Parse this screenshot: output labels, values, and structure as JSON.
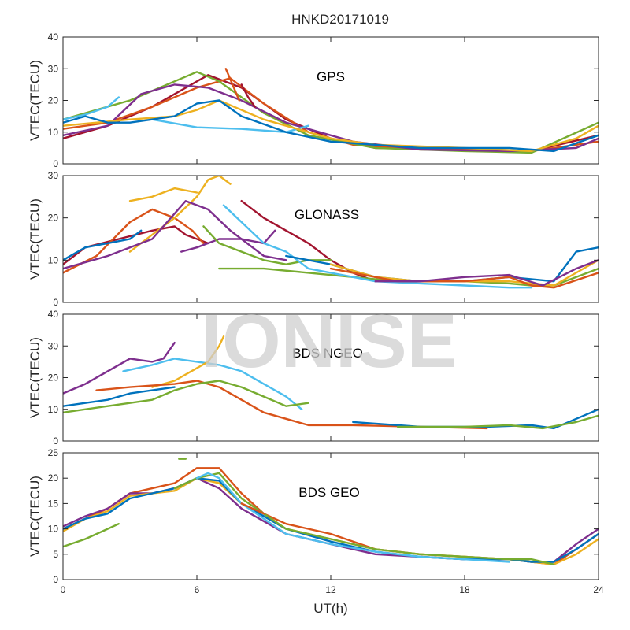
{
  "chart_data": {
    "type": "line",
    "title": "HNKD20171019",
    "xlabel": "UT(h)",
    "xlim": [
      0,
      24
    ],
    "xticks": [
      "0",
      "6",
      "12",
      "18",
      "24"
    ],
    "watermark": "IONISE",
    "panels": [
      {
        "label": "GPS",
        "ylabel": "VTEC(TECU)",
        "ylim": [
          0,
          40
        ],
        "yticks": [
          "0",
          "10",
          "20",
          "30",
          "40"
        ],
        "series": [
          {
            "color": "#a2142f",
            "x": [
              0,
              2,
              4,
              5.5,
              6.5,
              8,
              10,
              12,
              14,
              18,
              21,
              24
            ],
            "y": [
              8,
              12,
              18,
              24,
              28,
              24,
              14,
              8,
              5,
              4.5,
              4,
              9
            ]
          },
          {
            "color": "#d95319",
            "x": [
              0,
              2,
              4,
              6,
              7.5,
              9,
              11,
              13,
              16,
              19,
              21,
              24
            ],
            "y": [
              11,
              13,
              18,
              24,
              27,
              19,
              10,
              6,
              4.5,
              4.5,
              4,
              7
            ]
          },
          {
            "color": "#77ac30",
            "x": [
              0,
              1,
              3,
              5,
              6,
              7,
              9,
              11,
              14,
              18,
              21,
              24
            ],
            "y": [
              14,
              16,
              20,
              26,
              29,
              26,
              16,
              9,
              5,
              4,
              3.5,
              13
            ]
          },
          {
            "color": "#7e2f8e",
            "x": [
              0,
              2,
              3.5,
              5,
              6.5,
              8,
              10,
              13,
              16,
              20,
              23,
              24
            ],
            "y": [
              9,
              12,
              22,
              25,
              24,
              20,
              13,
              7,
              4.5,
              4,
              5,
              8
            ]
          },
          {
            "color": "#4dbeee",
            "x": [
              0,
              1,
              2,
              2.5
            ],
            "y": [
              14,
              15.5,
              18,
              21
            ]
          },
          {
            "color": "#4dbeee",
            "x": [
              4,
              6,
              8,
              10,
              11
            ],
            "y": [
              14,
              11.5,
              11,
              10,
              12
            ]
          },
          {
            "color": "#edb120",
            "x": [
              0,
              3,
              5,
              6,
              7,
              9,
              12,
              14,
              18,
              21,
              23,
              24
            ],
            "y": [
              12,
              14,
              15,
              17,
              20,
              14,
              8,
              6,
              5,
              4,
              8,
              12
            ]
          },
          {
            "color": "#0072bd",
            "x": [
              0,
              1,
              2,
              3,
              4,
              5,
              6,
              7,
              8,
              10,
              12,
              16,
              20,
              22,
              24
            ],
            "y": [
              13,
              15,
              13,
              13,
              14,
              15,
              19,
              20,
              15,
              10,
              7,
              5,
              5,
              4,
              9
            ]
          },
          {
            "color": "#d95319",
            "x": [
              7.3,
              7.6,
              7.9
            ],
            "y": [
              30,
              25,
              20
            ]
          },
          {
            "color": "#a2142f",
            "x": [
              8,
              8.3,
              8.6
            ],
            "y": [
              25,
              21,
              18
            ]
          }
        ]
      },
      {
        "label": "GLONASS",
        "ylabel": "VTEC(TECU)",
        "ylim": [
          0,
          30
        ],
        "yticks": [
          "0",
          "10",
          "20",
          "30"
        ],
        "series": [
          {
            "color": "#a2142f",
            "x": [
              0,
              1,
              2.5,
              4,
              5,
              5.5,
              6.5
            ],
            "y": [
              9,
              13,
              15,
              17,
              18,
              16,
              14
            ]
          },
          {
            "color": "#a2142f",
            "x": [
              8,
              9,
              10,
              11,
              12,
              13,
              14
            ],
            "y": [
              24,
              20,
              17,
              14,
              10,
              7,
              5
            ]
          },
          {
            "color": "#d95319",
            "x": [
              0,
              1.5,
              3,
              4,
              5,
              5.8,
              6.3
            ],
            "y": [
              7,
              11,
              19,
              22,
              20,
              17,
              14
            ]
          },
          {
            "color": "#edb120",
            "x": [
              3,
              4,
              5,
              6,
              6.5,
              7,
              7.5
            ],
            "y": [
              12,
              16,
              20,
              25,
              29,
              30,
              28
            ]
          },
          {
            "color": "#edb120",
            "x": [
              3,
              4,
              5,
              6
            ],
            "y": [
              24,
              25,
              27,
              26
            ]
          },
          {
            "color": "#7e2f8e",
            "x": [
              0,
              2,
              4,
              5.5,
              6.5,
              7.5,
              9,
              10
            ],
            "y": [
              8,
              11,
              15,
              24,
              22,
              17,
              11,
              10
            ]
          },
          {
            "color": "#7e2f8e",
            "x": [
              5.3,
              6,
              7,
              8,
              9,
              9.5
            ],
            "y": [
              12,
              13,
              15,
              15,
              14,
              17
            ]
          },
          {
            "color": "#77ac30",
            "x": [
              6.3,
              7,
              8,
              9,
              10,
              11,
              12
            ],
            "y": [
              18,
              14,
              12,
              10,
              9,
              10,
              10
            ]
          },
          {
            "color": "#77ac30",
            "x": [
              7,
              9,
              11,
              13,
              15,
              18,
              20,
              21,
              22,
              24
            ],
            "y": [
              8,
              8,
              7,
              6,
              5,
              5,
              4.5,
              4,
              4,
              8
            ]
          },
          {
            "color": "#4dbeee",
            "x": [
              7.2,
              8,
              9,
              10,
              11,
              12,
              14,
              16,
              18,
              20,
              21
            ],
            "y": [
              23,
              19,
              14,
              12,
              8,
              7,
              5,
              4.5,
              4,
              3.5,
              3.5
            ]
          },
          {
            "color": "#0072bd",
            "x": [
              0,
              1,
              2,
              3,
              3.5
            ],
            "y": [
              10,
              13,
              14,
              15,
              17
            ]
          },
          {
            "color": "#0072bd",
            "x": [
              10,
              12,
              14,
              16,
              18,
              20,
              22,
              23,
              24
            ],
            "y": [
              11,
              9,
              6,
              5,
              5,
              6,
              5,
              12,
              13
            ]
          },
          {
            "color": "#edb120",
            "x": [
              12,
              14,
              16,
              18,
              20,
              22,
              24
            ],
            "y": [
              9,
              6,
              5,
              5,
              5,
              4,
              10
            ]
          },
          {
            "color": "#d95319",
            "x": [
              12,
              15,
              18,
              20,
              21,
              22,
              24
            ],
            "y": [
              8,
              5,
              5,
              6,
              4,
              3.5,
              7
            ]
          },
          {
            "color": "#7e2f8e",
            "x": [
              14,
              16,
              18,
              20,
              21.5,
              23,
              24
            ],
            "y": [
              5,
              5,
              6,
              6.5,
              4,
              8,
              10
            ]
          }
        ]
      },
      {
        "label": "BDS NGEO",
        "ylabel": "VTEC(TECU)",
        "ylim": [
          0,
          40
        ],
        "yticks": [
          "0",
          "10",
          "20",
          "30",
          "40"
        ],
        "series": [
          {
            "color": "#7e2f8e",
            "x": [
              0,
              1,
              2,
              3,
              4,
              4.5,
              5
            ],
            "y": [
              15,
              18,
              22,
              26,
              25,
              26,
              31
            ]
          },
          {
            "color": "#4dbeee",
            "x": [
              2.7,
              4,
              5,
              6,
              7,
              8,
              9,
              10,
              10.7
            ],
            "y": [
              22,
              24,
              26,
              25,
              24,
              22,
              18,
              14,
              10
            ]
          },
          {
            "color": "#edb120",
            "x": [
              4,
              5,
              6,
              6.5,
              7,
              7.2
            ],
            "y": [
              17,
              19,
              23,
              25,
              30,
              33
            ]
          },
          {
            "color": "#0072bd",
            "x": [
              0,
              1,
              2,
              3,
              4,
              5
            ],
            "y": [
              11,
              12,
              13,
              15,
              16,
              17
            ]
          },
          {
            "color": "#d95319",
            "x": [
              1.5,
              3,
              5,
              6,
              7,
              8,
              9,
              10,
              11,
              13,
              16,
              19
            ],
            "y": [
              16,
              17,
              18,
              19,
              17,
              13,
              9,
              7,
              5,
              5,
              4.5,
              4
            ]
          },
          {
            "color": "#77ac30",
            "x": [
              0,
              2,
              4,
              5,
              6,
              7,
              8,
              9,
              10,
              11
            ],
            "y": [
              9,
              11,
              13,
              16,
              18,
              19,
              17,
              14,
              11,
              12
            ]
          },
          {
            "color": "#0072bd",
            "x": [
              13,
              16,
              19,
              21,
              22,
              23,
              24
            ],
            "y": [
              6,
              4.5,
              4.5,
              5,
              4,
              7,
              10
            ]
          },
          {
            "color": "#77ac30",
            "x": [
              15,
              18,
              20,
              21.5,
              23,
              24
            ],
            "y": [
              4.5,
              4.5,
              5,
              4,
              6,
              8
            ]
          }
        ]
      },
      {
        "label": "BDS GEO",
        "ylabel": "VTEC(TECU)",
        "ylim": [
          0,
          25
        ],
        "yticks": [
          "0",
          "5",
          "10",
          "15",
          "20",
          "25"
        ],
        "series": [
          {
            "color": "#d95319",
            "x": [
              0,
              1,
              2,
              3,
              4,
              5,
              6,
              7,
              8,
              9,
              10,
              12,
              14,
              16,
              18,
              20,
              21,
              22,
              23,
              24
            ],
            "y": [
              10,
              12,
              14,
              17,
              18,
              19,
              22,
              22,
              17,
              13,
              11,
              9,
              6,
              5,
              4.5,
              4,
              3.5,
              3,
              6,
              9
            ]
          },
          {
            "color": "#7e2f8e",
            "x": [
              0,
              1,
              2,
              3,
              4,
              5,
              6,
              7,
              8,
              10,
              12,
              14,
              16,
              18,
              20,
              21,
              22,
              23,
              24
            ],
            "y": [
              10.5,
              12.5,
              14,
              17,
              17,
              18,
              20,
              18,
              14,
              9,
              7,
              5,
              4.5,
              4,
              4,
              3.5,
              3.5,
              7,
              10
            ]
          },
          {
            "color": "#edb120",
            "x": [
              0,
              1,
              2,
              3,
              4,
              5,
              6,
              7,
              8,
              10,
              12,
              14,
              16,
              18,
              20,
              21,
              22,
              23,
              24
            ],
            "y": [
              9.5,
              12,
              13.5,
              16.5,
              17,
              17.5,
              20,
              19,
              15,
              10,
              8,
              6,
              5,
              4.5,
              4,
              3.5,
              3,
              5,
              8
            ]
          },
          {
            "color": "#0072bd",
            "x": [
              0,
              1,
              2,
              3,
              4,
              5,
              6,
              7,
              8,
              10,
              12,
              14,
              16,
              18,
              20,
              21,
              22,
              23,
              24
            ],
            "y": [
              10,
              12,
              13,
              16,
              17,
              18,
              20,
              19.5,
              15,
              10,
              7.5,
              5.5,
              4.5,
              4,
              4,
              3.5,
              3.5,
              6,
              9
            ]
          },
          {
            "color": "#77ac30",
            "x": [
              0,
              1,
              2,
              2.5
            ],
            "y": [
              6.5,
              8,
              10,
              11
            ]
          },
          {
            "color": "#77ac30",
            "x": [
              5,
              6,
              7,
              8,
              10,
              12,
              14,
              16,
              18,
              20,
              21,
              22
            ],
            "y": [
              18,
              20,
              21,
              16,
              10,
              8,
              6,
              5,
              4.5,
              4,
              4,
              3
            ]
          },
          {
            "color": "#4dbeee",
            "x": [
              6,
              6.5,
              7,
              8,
              9,
              10,
              12,
              14,
              16,
              18,
              20
            ],
            "y": [
              20,
              21,
              20,
              15,
              12,
              9,
              7,
              5.5,
              4.5,
              4,
              3.5
            ]
          },
          {
            "color": "#77ac30",
            "x": [
              5.2,
              5.5
            ],
            "y": [
              23.8,
              23.8
            ]
          },
          {
            "color": "#d95319",
            "x": [
              8,
              8.5,
              9
            ],
            "y": [
              15,
              14,
              13
            ]
          }
        ]
      }
    ]
  }
}
